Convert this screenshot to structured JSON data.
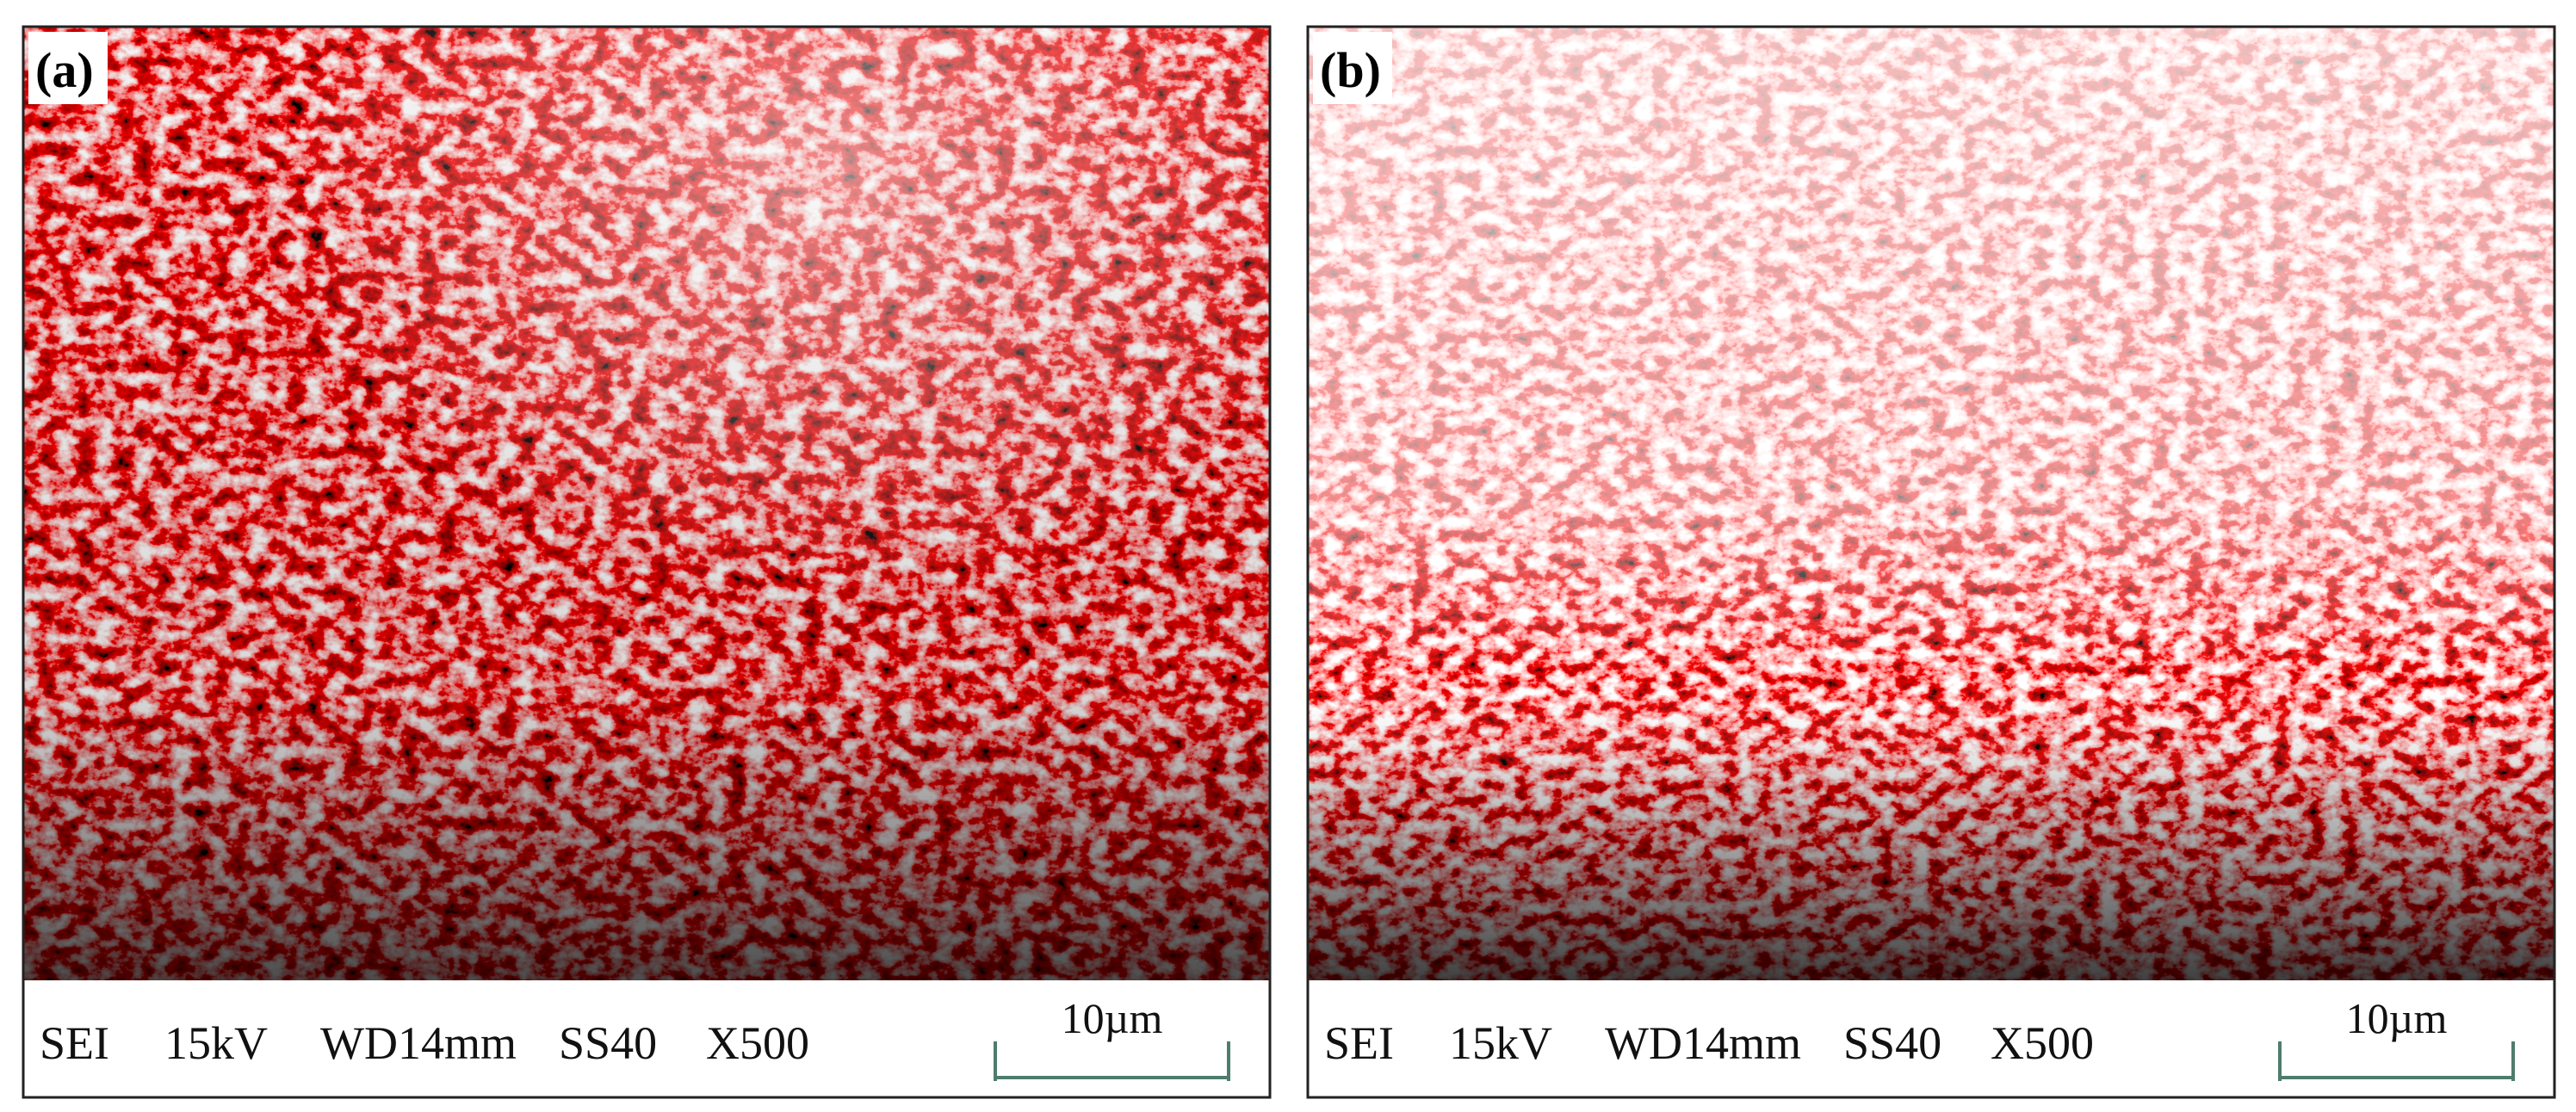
{
  "panels": [
    {
      "label": "(a)",
      "info": [
        "SEI",
        "15kV",
        "WD14mm",
        "SS40",
        "X500"
      ],
      "scale": "10µm"
    },
    {
      "label": "(b)",
      "info": [
        "SEI",
        "15kV",
        "WD14mm",
        "SS40",
        "X500"
      ],
      "scale": "10µm"
    }
  ]
}
